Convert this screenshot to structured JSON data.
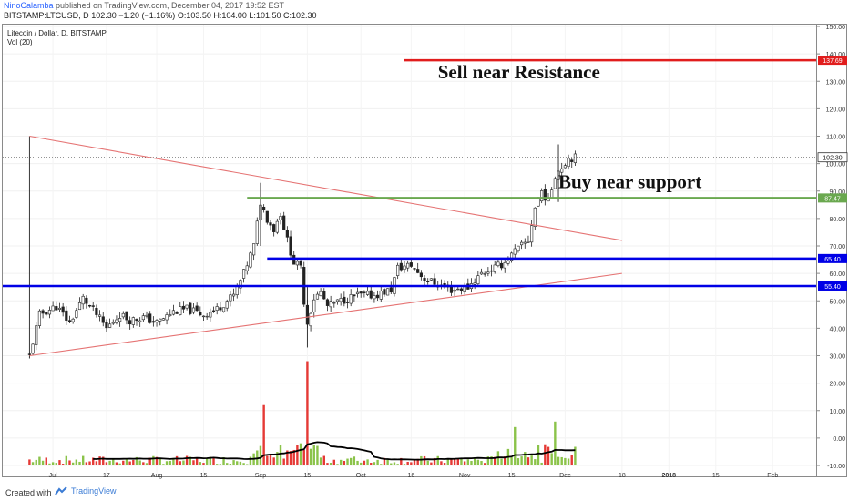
{
  "header": {
    "author": "NinoCalamba",
    "published_text": "published on TradingView.com, December 04, 2017 19:52 EST",
    "symbol": "BITSTAMP:LTCUSD, D",
    "last": "102.30",
    "change": "−1.20 (−1.16%)",
    "o_label": "O:",
    "o_val": "103.50",
    "h_label": "H:",
    "h_val": "104.00",
    "l_label": "L:",
    "l_val": "101.50",
    "c_label": "C:",
    "c_val": "102.30"
  },
  "legend": {
    "title": "Litecoin / Dollar, D, BITSTAMP",
    "volume": "Vol (20)"
  },
  "footer": {
    "created_label": "Created with",
    "brand": "TradingView"
  },
  "colors": {
    "up": "#2e8b57",
    "down": "#222222",
    "vol_up": "#8bc34a",
    "vol_down": "#e53935",
    "trendline": "#e57373",
    "resistance": "#e11d1d",
    "support_green": "#6aa84f",
    "support_blue": "#0000e6",
    "vol_ma": "#000000"
  },
  "chart_data": {
    "type": "candlestick",
    "price_axis": {
      "min": -10,
      "max": 150,
      "ticks": [
        150,
        140,
        130,
        120,
        110,
        100,
        90,
        80,
        70,
        60,
        50,
        40,
        30,
        20,
        10,
        0,
        -10
      ],
      "tick_labels": [
        "150.00",
        "140.00",
        "130.00",
        "120.00",
        "110.00",
        "100.00",
        "90.00",
        "80.00",
        "70.00",
        "60.00",
        "50.00",
        "40.00",
        "30.00",
        "20.00",
        "10.00",
        "0.00",
        "-10.00"
      ]
    },
    "time_axis": {
      "start": "2017-06-16",
      "end": "2018-02-14",
      "labels": [
        {
          "date": "2017-07-01",
          "text": "Jul"
        },
        {
          "date": "2017-07-17",
          "text": "17"
        },
        {
          "date": "2017-08-01",
          "text": "Aug"
        },
        {
          "date": "2017-08-15",
          "text": "15"
        },
        {
          "date": "2017-09-01",
          "text": "Sep"
        },
        {
          "date": "2017-09-15",
          "text": "15"
        },
        {
          "date": "2017-10-01",
          "text": "Oct"
        },
        {
          "date": "2017-10-16",
          "text": "16"
        },
        {
          "date": "2017-11-01",
          "text": "Nov"
        },
        {
          "date": "2017-11-15",
          "text": "15"
        },
        {
          "date": "2017-12-01",
          "text": "Dec"
        },
        {
          "date": "2017-12-18",
          "text": "18"
        },
        {
          "date": "2018-01-01",
          "text": "2018"
        },
        {
          "date": "2018-01-15",
          "text": "15"
        },
        {
          "date": "2018-02-01",
          "text": "Feb"
        }
      ]
    },
    "close_path": [
      [
        "2017-06-24",
        30
      ],
      [
        "2017-06-27",
        45
      ],
      [
        "2017-07-02",
        48
      ],
      [
        "2017-07-06",
        42
      ],
      [
        "2017-07-10",
        51
      ],
      [
        "2017-07-14",
        45
      ],
      [
        "2017-07-17",
        40
      ],
      [
        "2017-07-21",
        45
      ],
      [
        "2017-07-24",
        43
      ],
      [
        "2017-07-28",
        44
      ],
      [
        "2017-08-01",
        42
      ],
      [
        "2017-08-06",
        46
      ],
      [
        "2017-08-10",
        47
      ],
      [
        "2017-08-15",
        45
      ],
      [
        "2017-08-19",
        47
      ],
      [
        "2017-08-24",
        52
      ],
      [
        "2017-08-27",
        60
      ],
      [
        "2017-08-30",
        70
      ],
      [
        "2017-09-01",
        86
      ],
      [
        "2017-09-03",
        80
      ],
      [
        "2017-09-05",
        76
      ],
      [
        "2017-09-07",
        82
      ],
      [
        "2017-09-09",
        72
      ],
      [
        "2017-09-11",
        64
      ],
      [
        "2017-09-13",
        62
      ],
      [
        "2017-09-14",
        50
      ],
      [
        "2017-09-15",
        42
      ],
      [
        "2017-09-17",
        51
      ],
      [
        "2017-09-19",
        53
      ],
      [
        "2017-09-21",
        48
      ],
      [
        "2017-09-25",
        50
      ],
      [
        "2017-09-30",
        52
      ],
      [
        "2017-10-05",
        52
      ],
      [
        "2017-10-10",
        54
      ],
      [
        "2017-10-12",
        62
      ],
      [
        "2017-10-16",
        63
      ],
      [
        "2017-10-20",
        58
      ],
      [
        "2017-10-24",
        56
      ],
      [
        "2017-10-28",
        54
      ],
      [
        "2017-11-02",
        55
      ],
      [
        "2017-11-06",
        60
      ],
      [
        "2017-11-10",
        62
      ],
      [
        "2017-11-13",
        64
      ],
      [
        "2017-11-16",
        68
      ],
      [
        "2017-11-20",
        72
      ],
      [
        "2017-11-22",
        84
      ],
      [
        "2017-11-24",
        90
      ],
      [
        "2017-11-26",
        86
      ],
      [
        "2017-11-28",
        96
      ],
      [
        "2017-11-30",
        99
      ],
      [
        "2017-12-02",
        102
      ],
      [
        "2017-12-04",
        102.3
      ]
    ],
    "lines": [
      {
        "name": "upper-trendline",
        "x1": "2017-06-24",
        "y1": 110,
        "x2": "2017-12-18",
        "y2": 72
      },
      {
        "name": "lower-trendline",
        "x1": "2017-06-24",
        "y1": 30,
        "x2": "2017-12-18",
        "y2": 60
      },
      {
        "name": "resistance",
        "date_from": "2017-10-14",
        "date_to": "2018-02-28",
        "value": 137.69
      },
      {
        "name": "support-green",
        "date_from": "2017-08-28",
        "date_to": "2018-02-28",
        "value": 87.47
      },
      {
        "name": "support-blue-high",
        "date_from": "2017-09-03",
        "date_to": "2018-02-28",
        "value": 65.4
      },
      {
        "name": "support-blue-low",
        "date_from": "2017-06-16",
        "date_to": "2018-02-28",
        "value": 55.4
      },
      {
        "name": "last-price",
        "date_from": "2017-06-16",
        "date_to": "2018-02-28",
        "value": 102.3
      }
    ],
    "price_labels": [
      {
        "value": 137.69,
        "text": "137.69",
        "color": "#e11d1d"
      },
      {
        "value": 102.3,
        "text": "102.30",
        "color": "#ffffff"
      },
      {
        "value": 87.47,
        "text": "87.47",
        "color": "#6aa84f"
      },
      {
        "value": 65.4,
        "text": "65.40",
        "color": "#0000e6"
      },
      {
        "value": 55.4,
        "text": "55.40",
        "color": "#0000e6"
      }
    ],
    "annotations": [
      {
        "text": "Sell near Resistance",
        "date": "2017-10-24",
        "value": 131
      },
      {
        "text": "Buy near support",
        "date": "2017-11-29",
        "value": 91
      }
    ],
    "volume": {
      "baseline": -10,
      "spikes": [
        [
          "2017-09-15",
          28
        ],
        [
          "2017-09-02",
          12
        ],
        [
          "2017-11-28",
          6
        ],
        [
          "2017-11-16",
          4
        ]
      ]
    }
  }
}
